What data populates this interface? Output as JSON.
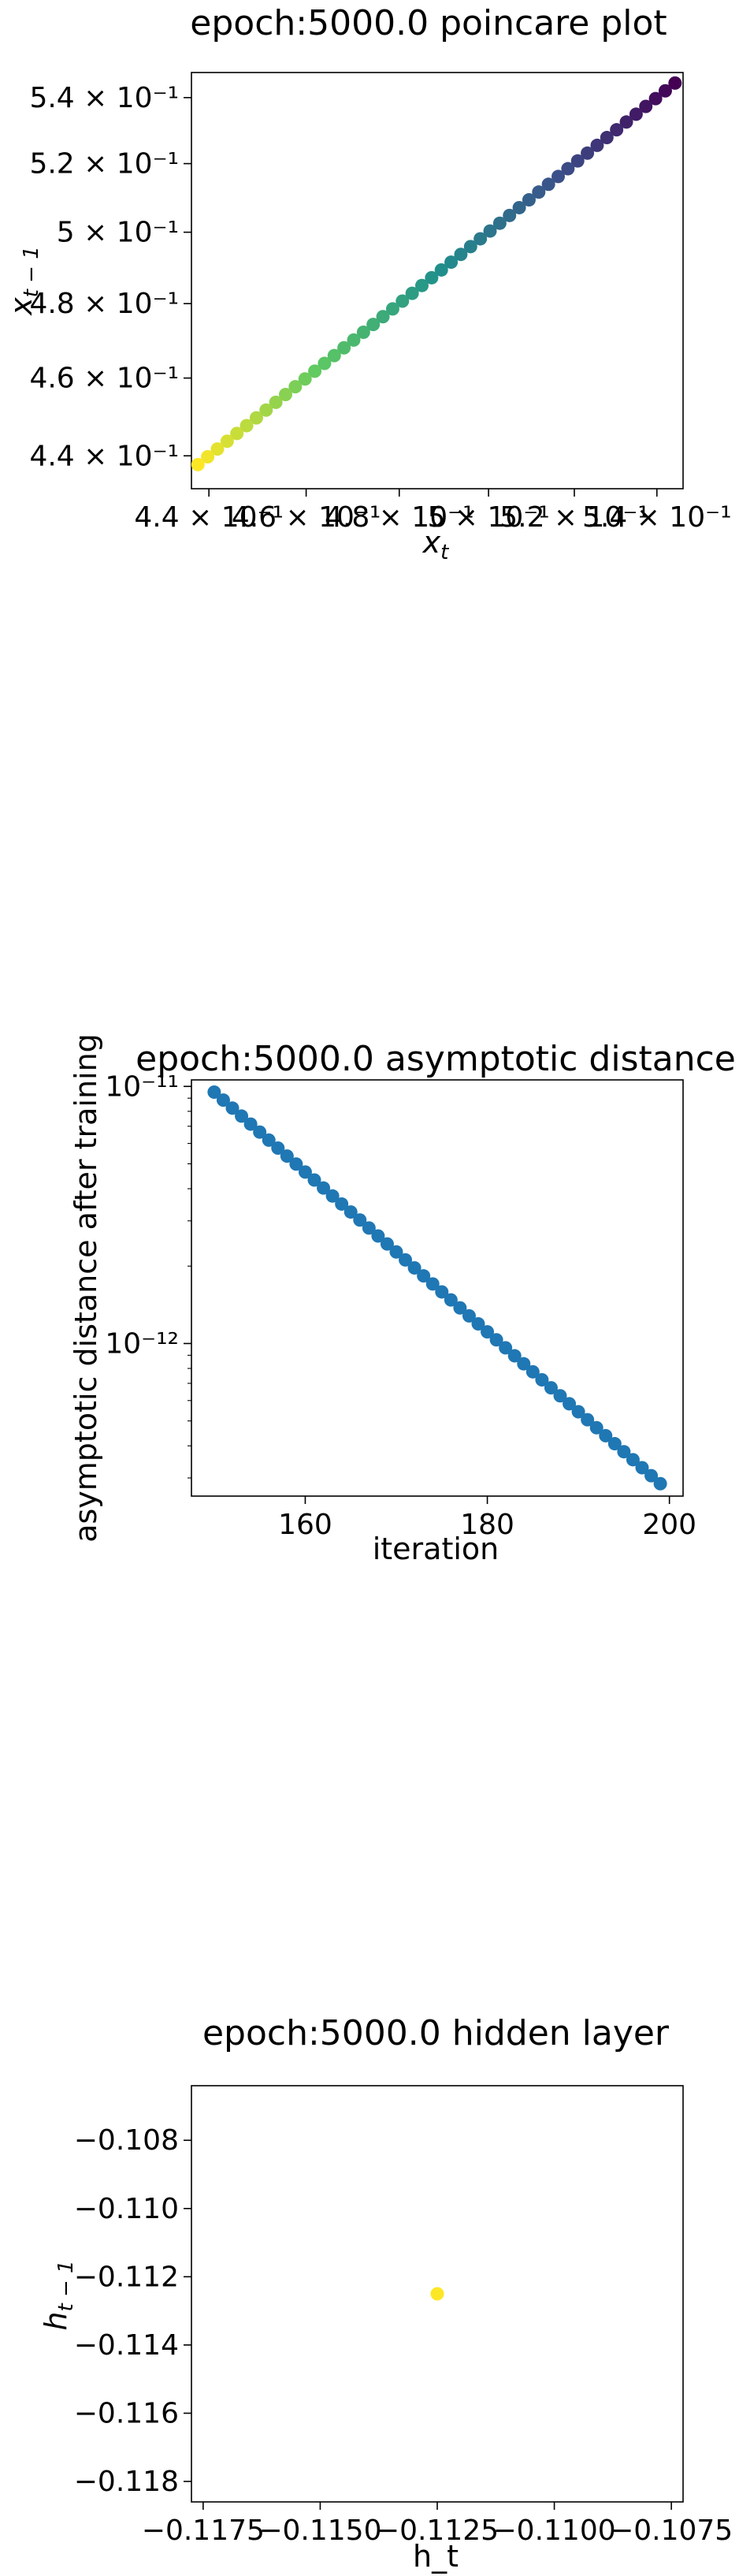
{
  "chart_data": [
    {
      "type": "scatter",
      "title": "epoch:5000.0 poincare plot",
      "xlabel": "x_t",
      "ylabel": "x_{t-1}",
      "xscale": "log",
      "yscale": "log",
      "xlim": [
        0.4365,
        0.5465
      ],
      "ylim": [
        0.4318,
        0.5478
      ],
      "xticks": [
        0.44,
        0.46,
        0.48,
        0.5,
        0.52,
        0.54
      ],
      "xtick_labels": [
        "4.4 × 10⁻¹",
        "4.6 × 10⁻¹",
        "4.8 × 10⁻¹",
        "5 × 10⁻¹",
        "5.2 × 10⁻¹",
        "5.4 × 10⁻¹"
      ],
      "yticks": [
        0.44,
        0.46,
        0.48,
        0.5,
        0.52,
        0.54
      ],
      "ytick_labels": [
        "4.4 × 10⁻¹",
        "4.6 × 10⁻¹",
        "4.8 × 10⁻¹",
        "5 × 10⁻¹",
        "5.2 × 10⁻¹",
        "5.4 × 10⁻¹"
      ],
      "colormap": "viridis (color by iteration order, first = purple, last = yellow)",
      "x_start": 0.5445,
      "x_end": 0.4378,
      "n_points": 50,
      "relation": "x_{t-1} approximately equal to x_t (points on the diagonal)",
      "grid": false
    },
    {
      "type": "scatter",
      "title": "epoch:5000.0 asymptotic distance",
      "xlabel": "iteration",
      "ylabel": "asymptotic distance after training",
      "yscale": "log",
      "xlim": [
        147.5,
        201.5
      ],
      "ylim": [
        2.55e-13,
        1.06e-11
      ],
      "xticks": [
        160,
        180,
        200
      ],
      "xtick_labels": [
        "160",
        "180",
        "200"
      ],
      "yticks": [
        1e-11,
        1e-12
      ],
      "ytick_labels": [
        "10⁻¹¹",
        "10⁻¹²"
      ],
      "color": "#1f77b4",
      "x": [
        150,
        151,
        152,
        153,
        154,
        155,
        156,
        157,
        158,
        159,
        160,
        161,
        162,
        163,
        164,
        165,
        166,
        167,
        168,
        169,
        170,
        171,
        172,
        173,
        174,
        175,
        176,
        177,
        178,
        179,
        180,
        181,
        182,
        183,
        184,
        185,
        186,
        187,
        188,
        189,
        190,
        191,
        192,
        193,
        194,
        195,
        196,
        197,
        198,
        199
      ],
      "y_start": 9.5e-12,
      "y_end": 2.85e-13,
      "grid": false
    },
    {
      "type": "scatter",
      "title": "epoch:5000.0 hidden layer",
      "xlabel": "h_t",
      "ylabel": "h_{t-1}",
      "xlim": [
        -0.11775,
        -0.10725
      ],
      "ylim": [
        -0.1186,
        -0.1064
      ],
      "xticks": [
        -0.1175,
        -0.115,
        -0.1125,
        -0.11,
        -0.1075
      ],
      "xtick_labels": [
        "−0.1175",
        "−0.1150",
        "−0.1125",
        "−0.1100",
        "−0.1075"
      ],
      "yticks": [
        -0.108,
        -0.11,
        -0.112,
        -0.114,
        -0.116,
        -0.118
      ],
      "ytick_labels": [
        "−0.108",
        "−0.110",
        "−0.112",
        "−0.114",
        "−0.116",
        "−0.118"
      ],
      "color": "#fde725",
      "x": [
        -0.1125
      ],
      "y": [
        -0.1125
      ],
      "grid": false
    }
  ]
}
